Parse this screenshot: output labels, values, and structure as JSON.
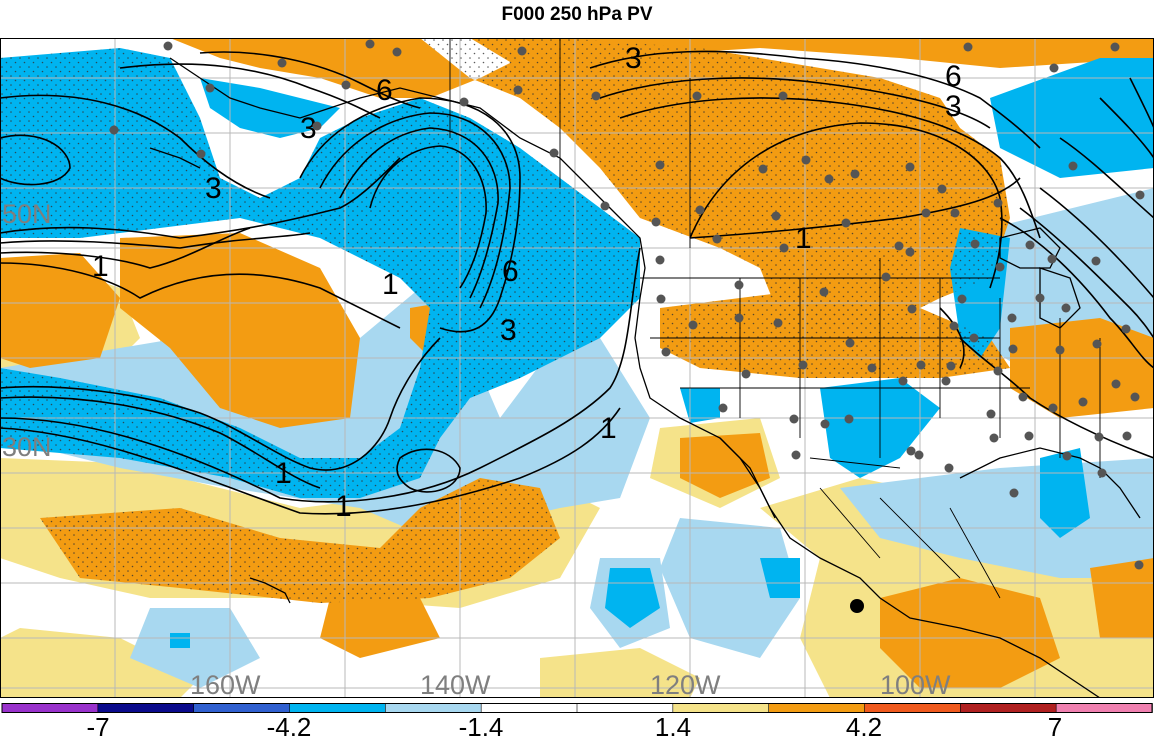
{
  "title": "F000 250 hPa PV",
  "map": {
    "lat_labels": [
      "50N",
      "30N"
    ],
    "lon_labels": [
      "160W",
      "140W",
      "120W",
      "100W"
    ],
    "contour_labels": [
      "1",
      "3",
      "6"
    ]
  },
  "colorbar": {
    "colors": [
      "#9932cc",
      "#0a0a8c",
      "#3060d0",
      "#00b4f0",
      "#a8d8f0",
      "#ffffff",
      "#ffffff",
      "#f5e38a",
      "#f39c12",
      "#f05a1e",
      "#b02020",
      "#f080b0"
    ],
    "tick_labels": [
      "-7",
      "-4.2",
      "-1.4",
      "1.4",
      "4.2",
      "7"
    ]
  }
}
